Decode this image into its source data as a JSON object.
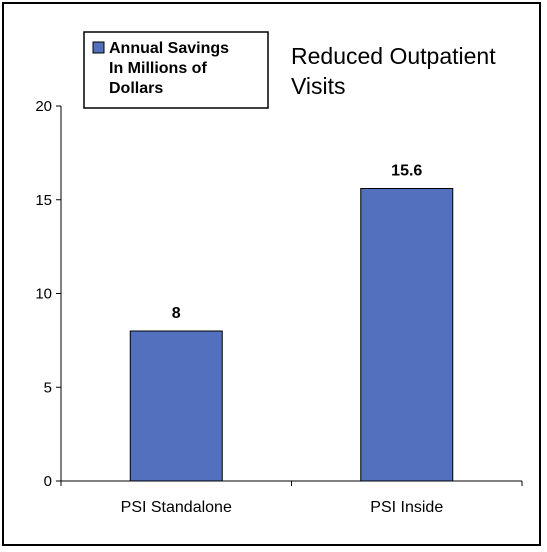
{
  "chart_data": {
    "type": "bar",
    "title": "Reduced Outpatient Visits",
    "categories": [
      "PSI Standalone",
      "PSI Inside"
    ],
    "series": [
      {
        "name": "Annual Savings In Millions of Dollars",
        "values": [
          8,
          15.6
        ],
        "data_labels": [
          "8",
          "15.6"
        ]
      }
    ],
    "ylim": [
      0,
      20
    ],
    "yticks": [
      0,
      5,
      10,
      15,
      20
    ],
    "ytick_labels": [
      "0",
      "5",
      "10",
      "15",
      "20"
    ],
    "grid": false,
    "legend_position": "top-left",
    "bar_color": "#5270bd"
  }
}
